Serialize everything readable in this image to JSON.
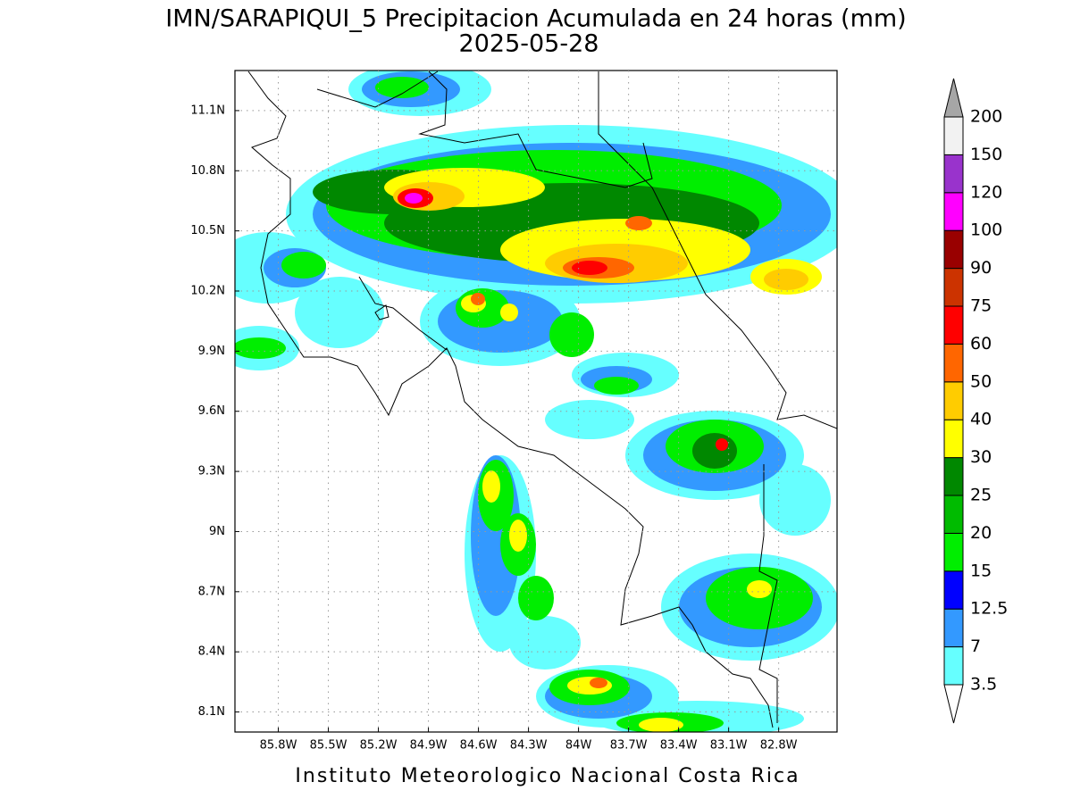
{
  "title": "IMN/SARAPIQUI_5 Precipitacion Acumulada en 24 horas (mm)",
  "subtitle": "2025-05-28",
  "footer": "Instituto Meteorologico Nacional Costa Rica",
  "map": {
    "xlim": [
      -86.06,
      -82.45
    ],
    "ylim": [
      8.0,
      11.3
    ],
    "xticks": [
      {
        "value": -85.8,
        "label": "85.8W"
      },
      {
        "value": -85.5,
        "label": "85.5W"
      },
      {
        "value": -85.2,
        "label": "85.2W"
      },
      {
        "value": -84.9,
        "label": "84.9W"
      },
      {
        "value": -84.6,
        "label": "84.6W"
      },
      {
        "value": -84.3,
        "label": "84.3W"
      },
      {
        "value": -84.0,
        "label": "84W"
      },
      {
        "value": -83.7,
        "label": "83.7W"
      },
      {
        "value": -83.4,
        "label": "83.4W"
      },
      {
        "value": -83.1,
        "label": "83.1W"
      },
      {
        "value": -82.8,
        "label": "82.8W"
      }
    ],
    "yticks": [
      {
        "value": 8.1,
        "label": "8.1N"
      },
      {
        "value": 8.4,
        "label": "8.4N"
      },
      {
        "value": 8.7,
        "label": "8.7N"
      },
      {
        "value": 9.0,
        "label": "9N"
      },
      {
        "value": 9.3,
        "label": "9.3N"
      },
      {
        "value": 9.6,
        "label": "9.6N"
      },
      {
        "value": 9.9,
        "label": "9.9N"
      },
      {
        "value": 10.2,
        "label": "10.2N"
      },
      {
        "value": 10.5,
        "label": "10.5N"
      },
      {
        "value": 10.8,
        "label": "10.8N"
      },
      {
        "value": 11.1,
        "label": "11.1N"
      }
    ],
    "grid": true
  },
  "colorbar": {
    "levels": [
      3.5,
      7,
      12.5,
      15,
      20,
      25,
      30,
      40,
      50,
      60,
      75,
      90,
      100,
      120,
      150,
      200
    ],
    "colors": [
      "#66ffff",
      "#3399ff",
      "#0000ff",
      "#00ee00",
      "#00bb00",
      "#008800",
      "#ffff00",
      "#ffcc00",
      "#ff6600",
      "#ff0000",
      "#cc3300",
      "#990000",
      "#ff00ff",
      "#9933cc",
      "#f2f2f2"
    ],
    "under_color": "#ffffff",
    "over_color": "#a6a6a6"
  }
}
